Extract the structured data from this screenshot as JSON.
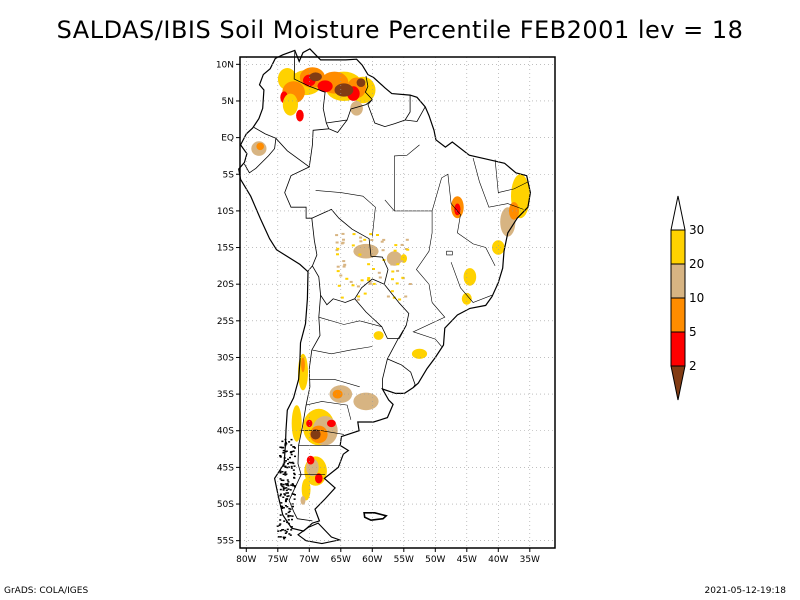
{
  "title": "SALDAS/IBIS Soil Moisture Percentile FEB2001 lev = 18",
  "map": {
    "region": "South America",
    "lon_labels": [
      "80W",
      "75W",
      "70W",
      "65W",
      "60W",
      "55W",
      "50W",
      "45W",
      "40W",
      "35W"
    ],
    "lat_labels": [
      "10N",
      "5N",
      "EQ",
      "5S",
      "10S",
      "15S",
      "20S",
      "25S",
      "30S",
      "35S",
      "40S",
      "45S",
      "50S",
      "55S"
    ],
    "lon_range": [
      -81,
      -31
    ],
    "lat_range": [
      -56,
      11
    ]
  },
  "legend": {
    "levels": [
      "30",
      "20",
      "10",
      "5",
      "2"
    ],
    "colors": {
      "above_30": "#ffffff",
      "20_30": "#ffd200",
      "10_20": "#d7b482",
      "5_10": "#ff8c00",
      "2_5": "#ff0000",
      "below_2": "#823c14"
    }
  },
  "footer": {
    "left": "GrADS: COLA/IGES",
    "right": "2021-05-12-19:18"
  }
}
